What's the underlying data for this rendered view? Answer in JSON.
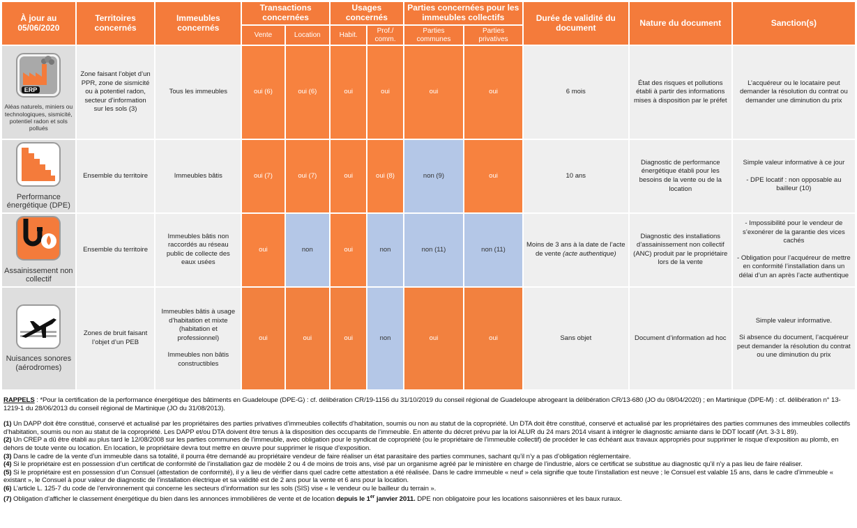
{
  "header": {
    "date": "À jour au 05/06/2020",
    "territoires": "Territoires concernés",
    "immeubles": "Immeubles concernés",
    "transactions": "Transactions concernées",
    "vente": "Vente",
    "location": "Location",
    "usages": "Usages concernés",
    "habit": "Habit.",
    "prof": "Prof./ comm.",
    "parties": "Parties concernées pour les immeubles collectifs",
    "communes": "Parties communes",
    "privatives": "Parties privatives",
    "duree": "Durée de validité du document",
    "nature": "Nature du document",
    "sanction": "Sanction(s)"
  },
  "rows": [
    {
      "icon_label": "ERP",
      "label": "Aléas naturels, miniers ou technologiques, sismicité, potentiel radon et sols pollués",
      "territoires": "Zone faisant l’objet d’un PPR, zone de sismicité ou à potentiel radon, secteur d’information sur les sols (3)",
      "immeubles": "Tous les immeubles",
      "cells": [
        "oui (6)",
        "oui (6)",
        "oui",
        "oui",
        "oui",
        "oui"
      ],
      "cell_colors": [
        "#f7823f",
        "#f7823f",
        "#f7823f",
        "#f7823f",
        "#f7823f",
        "#f7823f"
      ],
      "duree": "6 mois",
      "nature": "État des risques et pollutions établi à partir des informations mises à disposition par le préfet",
      "sanction": "L’acquéreur ou le locataire peut demander la résolution du contrat ou demander une diminution du prix"
    },
    {
      "label": "Performance énergétique (DPE)",
      "territoires": "Ensemble du territoire",
      "immeubles": "Immeubles bâtis",
      "cells": [
        "oui (7)",
        "oui (7)",
        "oui",
        "oui (8)",
        "non (9)",
        "oui"
      ],
      "cell_colors": [
        "#f7823f",
        "#f7823f",
        "#f7823f",
        "#f7823f",
        "#b4c7e7",
        "#f7823f"
      ],
      "duree": "10 ans",
      "nature": "Diagnostic de performance énergétique établi pour les besoins de la vente ou de la location",
      "sanction": [
        "Simple valeur informative à ce jour",
        "- DPE locatif : non opposable au bailleur (10)"
      ]
    },
    {
      "label": "Assainissement non collectif",
      "territoires": "Ensemble du territoire",
      "immeubles": "Immeubles bâtis non raccordés au réseau public de collecte des eaux usées",
      "cells": [
        "oui",
        "non",
        "oui",
        "non",
        "non (11)",
        "non (11)"
      ],
      "cell_colors": [
        "#f7823f",
        "#b4c7e7",
        "#f7823f",
        "#b4c7e7",
        "#b4c7e7",
        "#b4c7e7"
      ],
      "duree": "Moins de 3 ans à la date de l’acte de vente",
      "duree_italic": "(acte authentique)",
      "nature": "Diagnostic des installations d’assainissement non collectif (ANC) produit par le propriétaire lors de la vente",
      "sanction": [
        "- Impossibilité pour le vendeur de s’exonérer de la garantie des vices cachés",
        "- Obligation pour l’acquéreur de mettre en conformité l’installation dans un délai d’un an après l’acte authentique"
      ]
    },
    {
      "label": "Nuisances sonores (aérodromes)",
      "territoires": "Zones de bruit faisant l’objet d’un PEB",
      "immeubles": [
        "Immeubles bâtis à usage d’habitation et mixte (habitation et professionnel)",
        "Immeubles non bâtis constructibles"
      ],
      "cells": [
        "oui",
        "oui",
        "oui",
        "non",
        "oui",
        "oui"
      ],
      "cell_colors": [
        "#f2813f",
        "#f2813f",
        "#f2813f",
        "#b4c7e7",
        "#f2813f",
        "#f2813f"
      ],
      "duree": "Sans objet",
      "nature": "Document d’information ad hoc",
      "sanction": [
        "Simple valeur informative.",
        "Si absence du document, l’acquéreur peut demander la résolution du contrat ou une diminution du prix"
      ]
    }
  ],
  "notes": {
    "rappels_label": "RAPPELS",
    "rappels": " : *Pour la certification de la performance énergétique des bâtiments en Guadeloupe (DPE-G) : cf. délibération CR/19-1156 du 31/10/2019 du conseil régional de Guadeloupe abrogeant la délibération CR/13-680 (JO du 08/04/2020) ; en Martinique (DPE-M) : cf. délibération n° 13-1219-1 du 28/06/2013 du conseil régional de Martinique (JO du 31/08/2013).",
    "items": [
      {
        "num": "(1)",
        "text": " Un DAPP doit être constitué, conservé et actualisé par les propriétaires des parties privatives d’immeubles collectifs d’habitation, soumis ou non au statut de la copropriété. Un DTA doit être constitué, conservé et actualisé par les propriétaires des parties communes des immeubles collectifs d’habitation, soumis ou non au statut de la copropriété. Les DAPP et/ou DTA doivent être tenus à la disposition des occupants de l’immeuble. En attente du décret prévu par la loi ALUR du 24 mars 2014 visant à intégrer le diagnostic amiante dans le DDT locatif (Art. 3-3 L 89)."
      },
      {
        "num": "(2)",
        "text": " Un CREP a dû être établi au plus tard le 12/08/2008 sur les parties communes de l’immeuble, avec obligation pour le syndicat de copropriété (ou le propriétaire de l’immeuble collectif) de procéder le cas échéant aux travaux appropriés pour supprimer le risque d’exposition au plomb, en dehors de toute vente ou location. En location, le propriétaire devra tout mettre en œuvre pour supprimer le risque d’exposition."
      },
      {
        "num": "(3)",
        "text": " Dans le cadre de la vente d’un immeuble dans sa totalité, il pourra être demandé au propriétaire vendeur de faire réaliser un état parasitaire des parties communes, sachant qu’il n’y a pas d’obligation réglementaire."
      },
      {
        "num": "(4)",
        "text": " Si le propriétaire est en possession d’un certificat de conformité de l’installation gaz de modèle 2 ou 4 de moins de trois ans, visé par un organisme agréé par le ministère en charge de l’industrie, alors ce certificat se substitue au diagnostic qu’il n’y a pas lieu de faire réaliser."
      },
      {
        "num": "(5)",
        "text": " Si le propriétaire est en possession d’un Consuel (attestation de conformité), il y a lieu de vérifier dans quel cadre cette attestation a été réalisée. Dans le cadre immeuble « neuf » cela signifie que toute l’installation est neuve ; le Consuel est valable 15 ans, dans le cadre d’immeuble « existant », le Consuel à pour valeur de diagnostic de l’installation électrique et sa validité est de 2 ans pour la vente et 6 ans pour la location."
      },
      {
        "num": "(6)",
        "text": " L’article L. 125-7 du code de l’environnement qui concerne les secteurs d’information sur les sols (SIS) vise « le vendeur ou le bailleur du terrain »."
      },
      {
        "num": "(7)",
        "text": " Obligation d’afficher le classement énergétique du bien dans les annonces immobilières de vente et de location ",
        "bold": "depuis le 1",
        "sup": "er",
        "bold_after": " janvier 2011.",
        "after": " DPE non obligatoire pour les locations saisonnières et les baux ruraux."
      }
    ]
  }
}
